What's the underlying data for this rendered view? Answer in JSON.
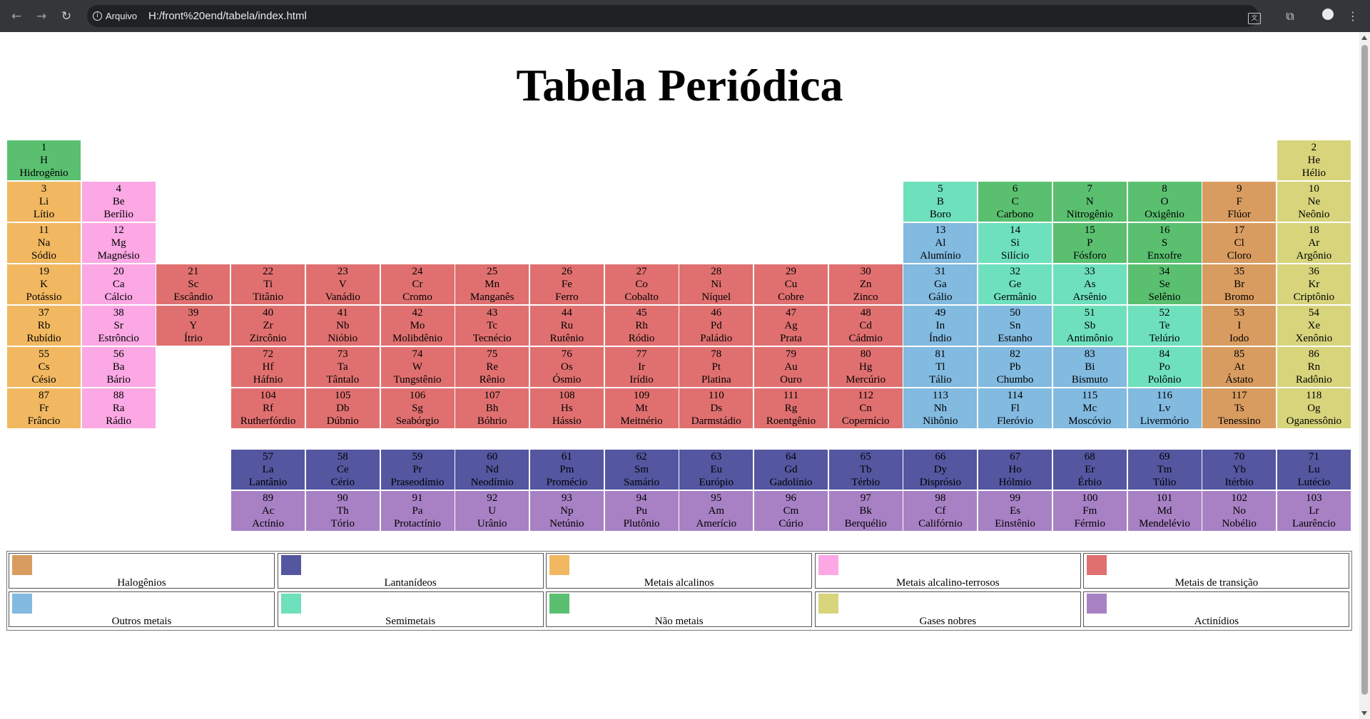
{
  "browser": {
    "address_chip": "Arquivo",
    "url": "H:/front%20end/tabela/index.html",
    "icons": {
      "back": "arrow-left-icon",
      "forward": "arrow-right-icon",
      "reload": "reload-icon",
      "info": "info-icon",
      "translate": "translate-icon",
      "extensions": "puzzle-icon",
      "profile": "profile-icon",
      "menu": "kebab-menu-icon"
    }
  },
  "page": {
    "title": "Tabela Periódica"
  },
  "colors": {
    "nao-metais": "#5ac070",
    "gases-nobres": "#d7d47c",
    "metais-alcalinos": "#f1b861",
    "alcalino-terrosos": "#fba8e4",
    "transicao": "#e07070",
    "semimetais": "#6ee0bc",
    "outros-metais": "#82bae0",
    "halogenios": "#d99c60",
    "lantanideos": "#5456a0",
    "actinideos": "#a781c4"
  },
  "elements": [
    {
      "n": "1",
      "s": "H",
      "name": "Hidrogênio",
      "cat": "nao-metais",
      "col": 1,
      "row": 1
    },
    {
      "n": "2",
      "s": "He",
      "name": "Hélio",
      "cat": "gases-nobres",
      "col": 18,
      "row": 1
    },
    {
      "n": "3",
      "s": "Li",
      "name": "Lítio",
      "cat": "metais-alcalinos",
      "col": 1,
      "row": 2
    },
    {
      "n": "4",
      "s": "Be",
      "name": "Berílio",
      "cat": "alcalino-terrosos",
      "col": 2,
      "row": 2
    },
    {
      "n": "5",
      "s": "B",
      "name": "Boro",
      "cat": "semimetais",
      "col": 13,
      "row": 2
    },
    {
      "n": "6",
      "s": "C",
      "name": "Carbono",
      "cat": "nao-metais",
      "col": 14,
      "row": 2
    },
    {
      "n": "7",
      "s": "N",
      "name": "Nitrogênio",
      "cat": "nao-metais",
      "col": 15,
      "row": 2
    },
    {
      "n": "8",
      "s": "O",
      "name": "Oxigênio",
      "cat": "nao-metais",
      "col": 16,
      "row": 2
    },
    {
      "n": "9",
      "s": "F",
      "name": "Flúor",
      "cat": "halogenios",
      "col": 17,
      "row": 2
    },
    {
      "n": "10",
      "s": "Ne",
      "name": "Neônio",
      "cat": "gases-nobres",
      "col": 18,
      "row": 2
    },
    {
      "n": "11",
      "s": "Na",
      "name": "Sódio",
      "cat": "metais-alcalinos",
      "col": 1,
      "row": 3
    },
    {
      "n": "12",
      "s": "Mg",
      "name": "Magnésio",
      "cat": "alcalino-terrosos",
      "col": 2,
      "row": 3
    },
    {
      "n": "13",
      "s": "Al",
      "name": "Alumínio",
      "cat": "outros-metais",
      "col": 13,
      "row": 3
    },
    {
      "n": "14",
      "s": "Si",
      "name": "Silício",
      "cat": "semimetais",
      "col": 14,
      "row": 3
    },
    {
      "n": "15",
      "s": "P",
      "name": "Fósforo",
      "cat": "nao-metais",
      "col": 15,
      "row": 3
    },
    {
      "n": "16",
      "s": "S",
      "name": "Enxofre",
      "cat": "nao-metais",
      "col": 16,
      "row": 3
    },
    {
      "n": "17",
      "s": "Cl",
      "name": "Cloro",
      "cat": "halogenios",
      "col": 17,
      "row": 3
    },
    {
      "n": "18",
      "s": "Ar",
      "name": "Argônio",
      "cat": "gases-nobres",
      "col": 18,
      "row": 3
    },
    {
      "n": "19",
      "s": "K",
      "name": "Potássio",
      "cat": "metais-alcalinos",
      "col": 1,
      "row": 4
    },
    {
      "n": "20",
      "s": "Ca",
      "name": "Cálcio",
      "cat": "alcalino-terrosos",
      "col": 2,
      "row": 4
    },
    {
      "n": "21",
      "s": "Sc",
      "name": "Escândio",
      "cat": "transicao",
      "col": 3,
      "row": 4
    },
    {
      "n": "22",
      "s": "Ti",
      "name": "Titânio",
      "cat": "transicao",
      "col": 4,
      "row": 4
    },
    {
      "n": "23",
      "s": "V",
      "name": "Vanádio",
      "cat": "transicao",
      "col": 5,
      "row": 4
    },
    {
      "n": "24",
      "s": "Cr",
      "name": "Cromo",
      "cat": "transicao",
      "col": 6,
      "row": 4
    },
    {
      "n": "25",
      "s": "Mn",
      "name": "Manganês",
      "cat": "transicao",
      "col": 7,
      "row": 4
    },
    {
      "n": "26",
      "s": "Fe",
      "name": "Ferro",
      "cat": "transicao",
      "col": 8,
      "row": 4
    },
    {
      "n": "27",
      "s": "Co",
      "name": "Cobalto",
      "cat": "transicao",
      "col": 9,
      "row": 4
    },
    {
      "n": "28",
      "s": "Ni",
      "name": "Níquel",
      "cat": "transicao",
      "col": 10,
      "row": 4
    },
    {
      "n": "29",
      "s": "Cu",
      "name": "Cobre",
      "cat": "transicao",
      "col": 11,
      "row": 4
    },
    {
      "n": "30",
      "s": "Zn",
      "name": "Zinco",
      "cat": "transicao",
      "col": 12,
      "row": 4
    },
    {
      "n": "31",
      "s": "Ga",
      "name": "Gálio",
      "cat": "outros-metais",
      "col": 13,
      "row": 4
    },
    {
      "n": "32",
      "s": "Ge",
      "name": "Germânio",
      "cat": "semimetais",
      "col": 14,
      "row": 4
    },
    {
      "n": "33",
      "s": "As",
      "name": "Arsênio",
      "cat": "semimetais",
      "col": 15,
      "row": 4
    },
    {
      "n": "34",
      "s": "Se",
      "name": "Selênio",
      "cat": "nao-metais",
      "col": 16,
      "row": 4
    },
    {
      "n": "35",
      "s": "Br",
      "name": "Bromo",
      "cat": "halogenios",
      "col": 17,
      "row": 4
    },
    {
      "n": "36",
      "s": "Kr",
      "name": "Criptônio",
      "cat": "gases-nobres",
      "col": 18,
      "row": 4
    },
    {
      "n": "37",
      "s": "Rb",
      "name": "Rubídio",
      "cat": "metais-alcalinos",
      "col": 1,
      "row": 5
    },
    {
      "n": "38",
      "s": "Sr",
      "name": "Estrôncio",
      "cat": "alcalino-terrosos",
      "col": 2,
      "row": 5
    },
    {
      "n": "39",
      "s": "Y",
      "name": "Ítrio",
      "cat": "transicao",
      "col": 3,
      "row": 5
    },
    {
      "n": "40",
      "s": "Zr",
      "name": "Zircônio",
      "cat": "transicao",
      "col": 4,
      "row": 5
    },
    {
      "n": "41",
      "s": "Nb",
      "name": "Nióbio",
      "cat": "transicao",
      "col": 5,
      "row": 5
    },
    {
      "n": "42",
      "s": "Mo",
      "name": "Molibdênio",
      "cat": "transicao",
      "col": 6,
      "row": 5
    },
    {
      "n": "43",
      "s": "Tc",
      "name": "Tecnécio",
      "cat": "transicao",
      "col": 7,
      "row": 5
    },
    {
      "n": "44",
      "s": "Ru",
      "name": "Rutênio",
      "cat": "transicao",
      "col": 8,
      "row": 5
    },
    {
      "n": "45",
      "s": "Rh",
      "name": "Ródio",
      "cat": "transicao",
      "col": 9,
      "row": 5
    },
    {
      "n": "46",
      "s": "Pd",
      "name": "Paládio",
      "cat": "transicao",
      "col": 10,
      "row": 5
    },
    {
      "n": "47",
      "s": "Ag",
      "name": "Prata",
      "cat": "transicao",
      "col": 11,
      "row": 5
    },
    {
      "n": "48",
      "s": "Cd",
      "name": "Cádmio",
      "cat": "transicao",
      "col": 12,
      "row": 5
    },
    {
      "n": "49",
      "s": "In",
      "name": "Índio",
      "cat": "outros-metais",
      "col": 13,
      "row": 5
    },
    {
      "n": "50",
      "s": "Sn",
      "name": "Estanho",
      "cat": "outros-metais",
      "col": 14,
      "row": 5
    },
    {
      "n": "51",
      "s": "Sb",
      "name": "Antimônio",
      "cat": "semimetais",
      "col": 15,
      "row": 5
    },
    {
      "n": "52",
      "s": "Te",
      "name": "Telúrio",
      "cat": "semimetais",
      "col": 16,
      "row": 5
    },
    {
      "n": "53",
      "s": "I",
      "name": "Iodo",
      "cat": "halogenios",
      "col": 17,
      "row": 5
    },
    {
      "n": "54",
      "s": "Xe",
      "name": "Xenônio",
      "cat": "gases-nobres",
      "col": 18,
      "row": 5
    },
    {
      "n": "55",
      "s": "Cs",
      "name": "Césio",
      "cat": "metais-alcalinos",
      "col": 1,
      "row": 6
    },
    {
      "n": "56",
      "s": "Ba",
      "name": "Bário",
      "cat": "alcalino-terrosos",
      "col": 2,
      "row": 6
    },
    {
      "n": "72",
      "s": "Hf",
      "name": "Háfnio",
      "cat": "transicao",
      "col": 4,
      "row": 6
    },
    {
      "n": "73",
      "s": "Ta",
      "name": "Tântalo",
      "cat": "transicao",
      "col": 5,
      "row": 6
    },
    {
      "n": "74",
      "s": "W",
      "name": "Tungstênio",
      "cat": "transicao",
      "col": 6,
      "row": 6
    },
    {
      "n": "75",
      "s": "Re",
      "name": "Rênio",
      "cat": "transicao",
      "col": 7,
      "row": 6
    },
    {
      "n": "76",
      "s": "Os",
      "name": "Ósmio",
      "cat": "transicao",
      "col": 8,
      "row": 6
    },
    {
      "n": "77",
      "s": "Ir",
      "name": "Irídio",
      "cat": "transicao",
      "col": 9,
      "row": 6
    },
    {
      "n": "78",
      "s": "Pt",
      "name": "Platina",
      "cat": "transicao",
      "col": 10,
      "row": 6
    },
    {
      "n": "79",
      "s": "Au",
      "name": "Ouro",
      "cat": "transicao",
      "col": 11,
      "row": 6
    },
    {
      "n": "80",
      "s": "Hg",
      "name": "Mercúrio",
      "cat": "transicao",
      "col": 12,
      "row": 6
    },
    {
      "n": "81",
      "s": "Tl",
      "name": "Tálio",
      "cat": "outros-metais",
      "col": 13,
      "row": 6
    },
    {
      "n": "82",
      "s": "Pb",
      "name": "Chumbo",
      "cat": "outros-metais",
      "col": 14,
      "row": 6
    },
    {
      "n": "83",
      "s": "Bi",
      "name": "Bismuto",
      "cat": "outros-metais",
      "col": 15,
      "row": 6
    },
    {
      "n": "84",
      "s": "Po",
      "name": "Polônio",
      "cat": "semimetais",
      "col": 16,
      "row": 6
    },
    {
      "n": "85",
      "s": "At",
      "name": "Ástato",
      "cat": "halogenios",
      "col": 17,
      "row": 6
    },
    {
      "n": "86",
      "s": "Rn",
      "name": "Radônio",
      "cat": "gases-nobres",
      "col": 18,
      "row": 6
    },
    {
      "n": "87",
      "s": "Fr",
      "name": "Frâncio",
      "cat": "metais-alcalinos",
      "col": 1,
      "row": 7
    },
    {
      "n": "88",
      "s": "Ra",
      "name": "Rádio",
      "cat": "alcalino-terrosos",
      "col": 2,
      "row": 7
    },
    {
      "n": "104",
      "s": "Rf",
      "name": "Rutherfórdio",
      "cat": "transicao",
      "col": 4,
      "row": 7
    },
    {
      "n": "105",
      "s": "Db",
      "name": "Dúbnio",
      "cat": "transicao",
      "col": 5,
      "row": 7
    },
    {
      "n": "106",
      "s": "Sg",
      "name": "Seabórgio",
      "cat": "transicao",
      "col": 6,
      "row": 7
    },
    {
      "n": "107",
      "s": "Bh",
      "name": "Bóhrio",
      "cat": "transicao",
      "col": 7,
      "row": 7
    },
    {
      "n": "108",
      "s": "Hs",
      "name": "Hássio",
      "cat": "transicao",
      "col": 8,
      "row": 7
    },
    {
      "n": "109",
      "s": "Mt",
      "name": "Meitnério",
      "cat": "transicao",
      "col": 9,
      "row": 7
    },
    {
      "n": "110",
      "s": "Ds",
      "name": "Darmstádio",
      "cat": "transicao",
      "col": 10,
      "row": 7
    },
    {
      "n": "111",
      "s": "Rg",
      "name": "Roentgênio",
      "cat": "transicao",
      "col": 11,
      "row": 7
    },
    {
      "n": "112",
      "s": "Cn",
      "name": "Copernício",
      "cat": "transicao",
      "col": 12,
      "row": 7
    },
    {
      "n": "113",
      "s": "Nh",
      "name": "Nihônio",
      "cat": "outros-metais",
      "col": 13,
      "row": 7
    },
    {
      "n": "114",
      "s": "Fl",
      "name": "Fleróvio",
      "cat": "outros-metais",
      "col": 14,
      "row": 7
    },
    {
      "n": "115",
      "s": "Mc",
      "name": "Moscóvio",
      "cat": "outros-metais",
      "col": 15,
      "row": 7
    },
    {
      "n": "116",
      "s": "Lv",
      "name": "Livermório",
      "cat": "outros-metais",
      "col": 16,
      "row": 7
    },
    {
      "n": "117",
      "s": "Ts",
      "name": "Tenessino",
      "cat": "halogenios",
      "col": 17,
      "row": 7
    },
    {
      "n": "118",
      "s": "Og",
      "name": "Oganessônio",
      "cat": "gases-nobres",
      "col": 18,
      "row": 7
    },
    {
      "n": "57",
      "s": "La",
      "name": "Lantânio",
      "cat": "lantanideos",
      "col": 4,
      "row": 8
    },
    {
      "n": "58",
      "s": "Ce",
      "name": "Cério",
      "cat": "lantanideos",
      "col": 5,
      "row": 8
    },
    {
      "n": "59",
      "s": "Pr",
      "name": "Praseodímio",
      "cat": "lantanideos",
      "col": 6,
      "row": 8
    },
    {
      "n": "60",
      "s": "Nd",
      "name": "Neodímio",
      "cat": "lantanideos",
      "col": 7,
      "row": 8
    },
    {
      "n": "61",
      "s": "Pm",
      "name": "Promécio",
      "cat": "lantanideos",
      "col": 8,
      "row": 8
    },
    {
      "n": "62",
      "s": "Sm",
      "name": "Samário",
      "cat": "lantanideos",
      "col": 9,
      "row": 8
    },
    {
      "n": "63",
      "s": "Eu",
      "name": "Európio",
      "cat": "lantanideos",
      "col": 10,
      "row": 8
    },
    {
      "n": "64",
      "s": "Gd",
      "name": "Gadolínio",
      "cat": "lantanideos",
      "col": 11,
      "row": 8
    },
    {
      "n": "65",
      "s": "Tb",
      "name": "Térbio",
      "cat": "lantanideos",
      "col": 12,
      "row": 8
    },
    {
      "n": "66",
      "s": "Dy",
      "name": "Disprósio",
      "cat": "lantanideos",
      "col": 13,
      "row": 8
    },
    {
      "n": "67",
      "s": "Ho",
      "name": "Hólmio",
      "cat": "lantanideos",
      "col": 14,
      "row": 8
    },
    {
      "n": "68",
      "s": "Er",
      "name": "Érbio",
      "cat": "lantanideos",
      "col": 15,
      "row": 8
    },
    {
      "n": "69",
      "s": "Tm",
      "name": "Túlio",
      "cat": "lantanideos",
      "col": 16,
      "row": 8
    },
    {
      "n": "70",
      "s": "Yb",
      "name": "Itérbio",
      "cat": "lantanideos",
      "col": 17,
      "row": 8
    },
    {
      "n": "71",
      "s": "Lu",
      "name": "Lutécio",
      "cat": "lantanideos",
      "col": 18,
      "row": 8
    },
    {
      "n": "89",
      "s": "Ac",
      "name": "Actínio",
      "cat": "actinideos",
      "col": 4,
      "row": 9
    },
    {
      "n": "90",
      "s": "Th",
      "name": "Tório",
      "cat": "actinideos",
      "col": 5,
      "row": 9
    },
    {
      "n": "91",
      "s": "Pa",
      "name": "Protactínio",
      "cat": "actinideos",
      "col": 6,
      "row": 9
    },
    {
      "n": "92",
      "s": "U",
      "name": "Urânio",
      "cat": "actinideos",
      "col": 7,
      "row": 9
    },
    {
      "n": "93",
      "s": "Np",
      "name": "Netúnio",
      "cat": "actinideos",
      "col": 8,
      "row": 9
    },
    {
      "n": "94",
      "s": "Pu",
      "name": "Plutônio",
      "cat": "actinideos",
      "col": 9,
      "row": 9
    },
    {
      "n": "95",
      "s": "Am",
      "name": "Amerício",
      "cat": "actinideos",
      "col": 10,
      "row": 9
    },
    {
      "n": "96",
      "s": "Cm",
      "name": "Cúrio",
      "cat": "actinideos",
      "col": 11,
      "row": 9
    },
    {
      "n": "97",
      "s": "Bk",
      "name": "Berquélio",
      "cat": "actinideos",
      "col": 12,
      "row": 9
    },
    {
      "n": "98",
      "s": "Cf",
      "name": "Califórnio",
      "cat": "actinideos",
      "col": 13,
      "row": 9
    },
    {
      "n": "99",
      "s": "Es",
      "name": "Einstênio",
      "cat": "actinideos",
      "col": 14,
      "row": 9
    },
    {
      "n": "100",
      "s": "Fm",
      "name": "Férmio",
      "cat": "actinideos",
      "col": 15,
      "row": 9
    },
    {
      "n": "101",
      "s": "Md",
      "name": "Mendelévio",
      "cat": "actinideos",
      "col": 16,
      "row": 9
    },
    {
      "n": "102",
      "s": "No",
      "name": "Nobélio",
      "cat": "actinideos",
      "col": 17,
      "row": 9
    },
    {
      "n": "103",
      "s": "Lr",
      "name": "Laurêncio",
      "cat": "actinideos",
      "col": 18,
      "row": 9
    }
  ],
  "legend": [
    {
      "label": "Halogênios",
      "cat": "halogenios"
    },
    {
      "label": "Lantanídeos",
      "cat": "lantanideos"
    },
    {
      "label": "Metais alcalinos",
      "cat": "metais-alcalinos"
    },
    {
      "label": "Metais alcalino-terrosos",
      "cat": "alcalino-terrosos"
    },
    {
      "label": "Metais de transição",
      "cat": "transicao"
    },
    {
      "label": "Outros metais",
      "cat": "outros-metais"
    },
    {
      "label": "Semimetais",
      "cat": "semimetais"
    },
    {
      "label": "Não metais",
      "cat": "nao-metais"
    },
    {
      "label": "Gases nobres",
      "cat": "gases-nobres"
    },
    {
      "label": "Actinídios",
      "cat": "actinideos"
    }
  ]
}
